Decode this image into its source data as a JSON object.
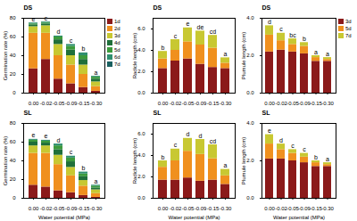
{
  "chart_data": [
    {
      "type": "bar",
      "stacked": true,
      "title": "DS",
      "y_label": "Germination rate (%)",
      "categories": [
        "0.00",
        "-0.02",
        "-0.05",
        "-0.09",
        "-0.15",
        "-0.30"
      ],
      "ylim": [
        0,
        80
      ],
      "yticks": [
        0,
        20,
        40,
        60,
        80
      ],
      "legend": "right",
      "annotations": [
        "e",
        "e",
        "d",
        "c",
        "b",
        "a"
      ],
      "series": [
        {
          "name": "1d",
          "color": "#8b1a1a",
          "values": [
            26,
            36,
            15,
            10,
            6,
            2
          ]
        },
        {
          "name": "2d",
          "color": "#f0901e",
          "values": [
            38,
            28,
            25,
            20,
            14,
            5
          ]
        },
        {
          "name": "3d",
          "color": "#c8c832",
          "values": [
            7,
            8,
            12,
            10,
            10,
            5
          ]
        },
        {
          "name": "4d",
          "color": "#1f6f3a",
          "values": [
            2,
            2,
            5,
            6,
            6,
            3
          ]
        },
        {
          "name": "5d",
          "color": "#3c9a3c",
          "values": [
            1,
            1,
            3,
            4,
            4,
            2
          ]
        },
        {
          "name": "6d",
          "color": "#2f8f6f",
          "values": [
            1,
            1,
            1,
            2,
            3,
            1
          ]
        },
        {
          "name": "7d",
          "color": "#1a6060",
          "values": [
            0,
            0,
            0,
            0,
            0,
            0
          ]
        }
      ]
    },
    {
      "type": "bar",
      "stacked": true,
      "title": "DS",
      "y_label": "Radicle length (cm)",
      "categories": [
        "0.00",
        "-0.02",
        "-0.05",
        "-0.09",
        "-0.15",
        "-0.30"
      ],
      "ylim": [
        0,
        7
      ],
      "yticks": [
        0,
        2,
        4,
        6
      ],
      "legend": false,
      "annotations": [
        "b",
        "c",
        "e",
        "de",
        "cd",
        "a"
      ],
      "series": [
        {
          "name": "3d",
          "color": "#8b1a1a",
          "values": [
            2.3,
            3.0,
            3.2,
            2.7,
            2.4,
            2.3
          ]
        },
        {
          "name": "5d",
          "color": "#f0901e",
          "values": [
            0.9,
            1.0,
            1.6,
            1.8,
            1.8,
            0.5
          ]
        },
        {
          "name": "7d",
          "color": "#c8c832",
          "values": [
            0.7,
            1.0,
            1.3,
            1.3,
            1.2,
            0.5
          ]
        }
      ]
    },
    {
      "type": "bar",
      "stacked": true,
      "title": "DS",
      "y_label": "Plumule length (cm)",
      "categories": [
        "0.00",
        "-0.02",
        "-0.05",
        "-0.09",
        "-0.15",
        "-0.30"
      ],
      "ylim": [
        0,
        4
      ],
      "yticks": [
        0,
        2,
        4
      ],
      "legend": "right",
      "annotations": [
        "d",
        "c",
        "bc",
        "b",
        "a",
        "a"
      ],
      "series": [
        {
          "name": "3d",
          "color": "#8b1a1a",
          "values": [
            2.2,
            2.3,
            2.2,
            2.1,
            1.7,
            1.7
          ]
        },
        {
          "name": "5d",
          "color": "#f0901e",
          "values": [
            0.9,
            0.5,
            0.4,
            0.4,
            0.2,
            0.1
          ]
        },
        {
          "name": "7d",
          "color": "#c8c832",
          "values": [
            0.5,
            0.4,
            0.3,
            0.2,
            0.1,
            0.1
          ]
        }
      ]
    },
    {
      "type": "bar",
      "stacked": true,
      "title": "SL",
      "y_label": "Germination rate (%)",
      "x_label": "Water potential (MPa)",
      "categories": [
        "0.00",
        "-0.02",
        "-0.05",
        "-0.09",
        "-0.15",
        "-0.30"
      ],
      "ylim": [
        0,
        80
      ],
      "yticks": [
        0,
        20,
        40,
        60,
        80
      ],
      "legend": false,
      "annotations": [
        "e",
        "e",
        "d",
        "c",
        "b",
        "a"
      ],
      "series": [
        {
          "name": "1d",
          "color": "#8b1a1a",
          "values": [
            14,
            12,
            8,
            6,
            3,
            1
          ]
        },
        {
          "name": "2d",
          "color": "#f0901e",
          "values": [
            34,
            36,
            28,
            18,
            10,
            4
          ]
        },
        {
          "name": "3d",
          "color": "#c8c832",
          "values": [
            8,
            8,
            10,
            9,
            6,
            4
          ]
        },
        {
          "name": "4d",
          "color": "#1f6f3a",
          "values": [
            4,
            3,
            6,
            6,
            4,
            2
          ]
        },
        {
          "name": "5d",
          "color": "#3c9a3c",
          "values": [
            2,
            2,
            4,
            4,
            3,
            2
          ]
        },
        {
          "name": "6d",
          "color": "#2f8f6f",
          "values": [
            1,
            1,
            2,
            2,
            2,
            1
          ]
        },
        {
          "name": "7d",
          "color": "#1a6060",
          "values": [
            0,
            0,
            0,
            0,
            0,
            0
          ]
        }
      ]
    },
    {
      "type": "bar",
      "stacked": true,
      "title": "SL",
      "y_label": "Radicle length (cm)",
      "x_label": "Water potential (MPa)",
      "categories": [
        "0.00",
        "-0.02",
        "-0.05",
        "-0.09",
        "-0.15",
        "-0.30"
      ],
      "ylim": [
        0,
        7
      ],
      "yticks": [
        0,
        2,
        4,
        6
      ],
      "legend": false,
      "annotations": [
        "b",
        "c",
        "d",
        "d",
        "cd",
        "a"
      ],
      "series": [
        {
          "name": "3d",
          "color": "#8b1a1a",
          "values": [
            1.7,
            1.7,
            1.9,
            1.6,
            1.7,
            1.3
          ]
        },
        {
          "name": "5d",
          "color": "#f0901e",
          "values": [
            1.2,
            1.8,
            2.5,
            2.5,
            2.0,
            0.8
          ]
        },
        {
          "name": "7d",
          "color": "#c8c832",
          "values": [
            0.6,
            1.1,
            1.2,
            1.4,
            1.3,
            0.6
          ]
        }
      ]
    },
    {
      "type": "bar",
      "stacked": true,
      "title": "SL",
      "y_label": "Plumule length (cm)",
      "x_label": "Water potential (MPa)",
      "categories": [
        "0.00",
        "-0.02",
        "-0.05",
        "-0.09",
        "-0.15",
        "-0.30"
      ],
      "ylim": [
        0,
        4
      ],
      "yticks": [
        0,
        2,
        4
      ],
      "legend": false,
      "annotations": [
        "e",
        "d",
        "c",
        "c",
        "b",
        "a"
      ],
      "series": [
        {
          "name": "3d",
          "color": "#8b1a1a",
          "values": [
            2.1,
            2.1,
            2.0,
            1.9,
            1.7,
            1.7
          ]
        },
        {
          "name": "5d",
          "color": "#f0901e",
          "values": [
            0.8,
            0.5,
            0.4,
            0.3,
            0.2,
            0.1
          ]
        },
        {
          "name": "7d",
          "color": "#c8c832",
          "values": [
            0.5,
            0.3,
            0.2,
            0.2,
            0.1,
            0.1
          ]
        }
      ]
    }
  ]
}
